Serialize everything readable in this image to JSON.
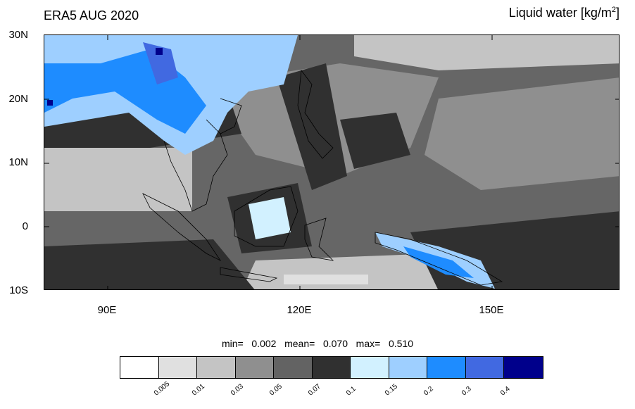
{
  "title_left": "ERA5 AUG 2020",
  "title_right": {
    "text": "Liquid water  [kg/m",
    "superscript": "2",
    "suffix": "]"
  },
  "map": {
    "lat_labels": [
      "30N",
      "20N",
      "10N",
      "0",
      "10S"
    ],
    "lon_labels": [
      "90E",
      "120E",
      "150E"
    ]
  },
  "stats": {
    "text": "min=   0.002   mean=   0.070   max=   0.510"
  },
  "colorbar": {
    "colors": [
      "#ffffff",
      "#e0e0e0",
      "#c4c4c4",
      "#8f8f8f",
      "#636363",
      "#303030",
      "#d2f1ff",
      "#9ecfff",
      "#1e8cff",
      "#4169e1",
      "#00008b"
    ],
    "labels": [
      "0.005",
      "0.01",
      "0.03",
      "0.05",
      "0.07",
      "0.1",
      "0.15",
      "0.2",
      "0.3",
      "0.4"
    ]
  }
}
